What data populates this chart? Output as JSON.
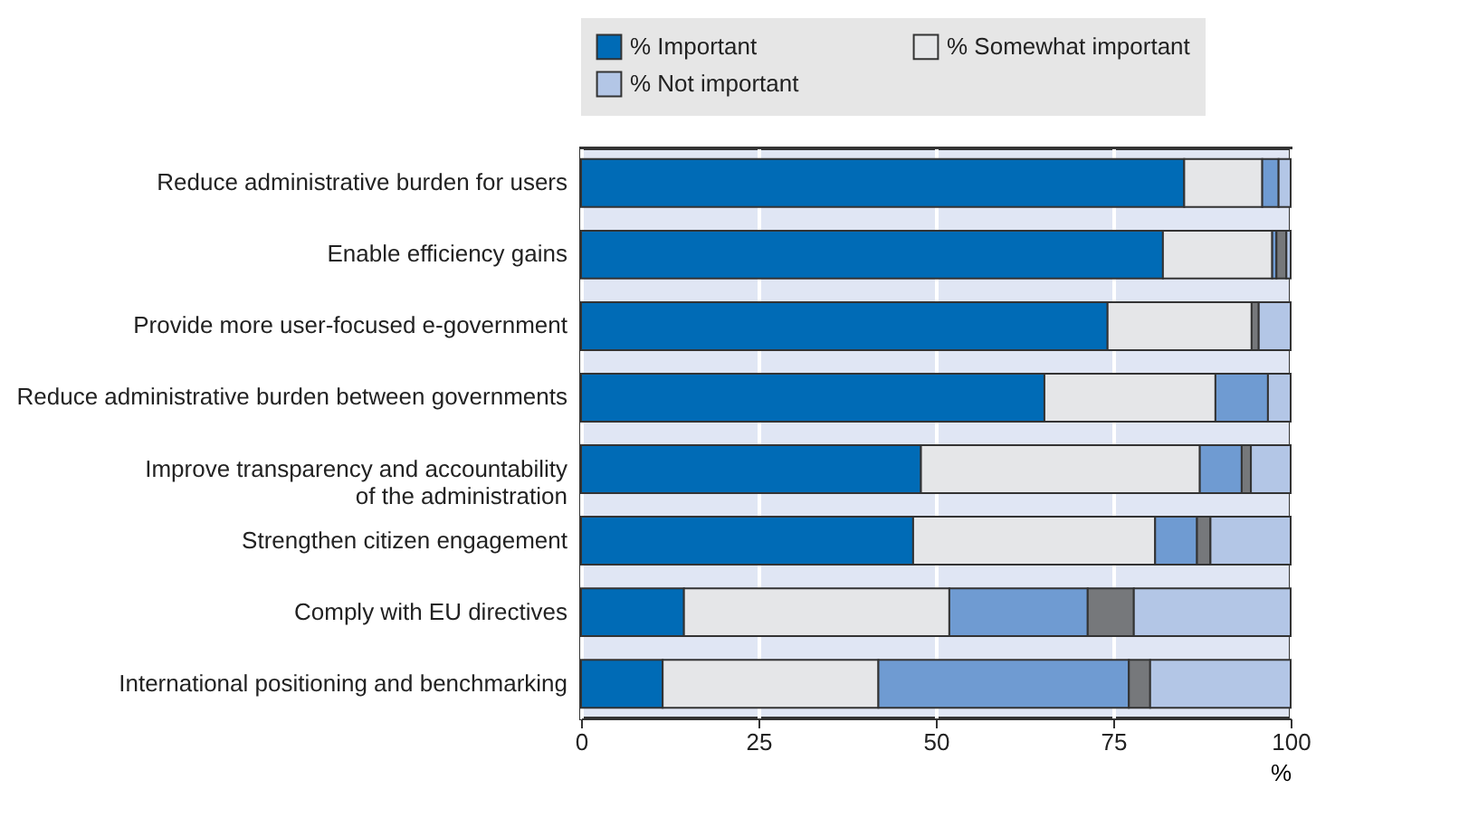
{
  "chart_data": {
    "type": "bar",
    "orientation": "horizontal",
    "stacked": true,
    "categories": [
      "Reduce administrative burden for users",
      "Enable efficiency gains",
      "Provide more user-focused e-government",
      "Reduce administrative burden between governments",
      "Improve transparency and accountability\nof the administration",
      "Strengthen citizen engagement",
      "Comply with EU directives",
      "International positioning and benchmarking"
    ],
    "series": [
      {
        "name": "% Important",
        "color": "#006bb6",
        "values": [
          85,
          82,
          74.2,
          65.3,
          47.9,
          46.8,
          14.5,
          11.5
        ]
      },
      {
        "name": "% Somewhat important",
        "color": "#e5e6e8",
        "values": [
          11,
          15.4,
          20.3,
          24.1,
          39.3,
          34.1,
          37.4,
          30.4
        ]
      },
      {
        "color": "#6f9bd2",
        "values": [
          2.3,
          0.6,
          0,
          7.4,
          5.9,
          5.9,
          19.5,
          35.3
        ]
      },
      {
        "color": "#76787b",
        "values": [
          0,
          1.4,
          1,
          0,
          1.3,
          1.9,
          6.5,
          3
        ]
      },
      {
        "name": "% Not important",
        "color": "#b3c6e6",
        "values": [
          1.7,
          0.6,
          4.5,
          3.2,
          5.6,
          11.3,
          22.1,
          19.8
        ]
      }
    ],
    "xlim": [
      0,
      100
    ],
    "xticks": [
      0,
      25,
      50,
      75,
      100
    ],
    "xlabel": "%",
    "grid": "x",
    "legend": "top"
  }
}
